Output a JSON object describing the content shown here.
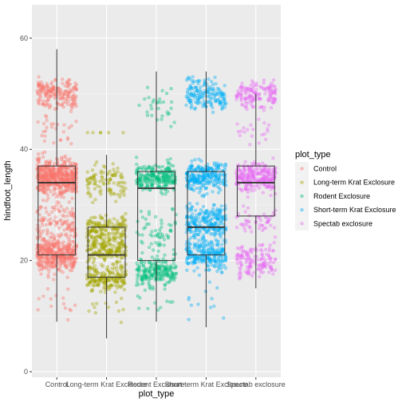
{
  "chart_data": {
    "type": "scatter",
    "subtype": "boxplot-with-jitter",
    "title": "",
    "xlabel": "plot_type",
    "ylabel": "hindfoot_length",
    "ylim": [
      -1,
      66
    ],
    "yticks": [
      0,
      20,
      40,
      60
    ],
    "grid": true,
    "legend": {
      "title": "plot_type",
      "placement": "right"
    },
    "categories": [
      "Control",
      "Long-term Krat Exclosure",
      "Rodent Exclosure",
      "Short-term Krat Exclosure",
      "Spectab exclosure"
    ],
    "colors": [
      "#F8766D",
      "#A3A500",
      "#00BF7D",
      "#00B0F6",
      "#E76BF3"
    ],
    "boxes": [
      {
        "name": "Control",
        "min": 9,
        "q1": 21,
        "median": 34,
        "q3": 37,
        "max": 58
      },
      {
        "name": "Long-term Krat Exclosure",
        "min": 6,
        "q1": 17,
        "median": 21,
        "q3": 26,
        "max": 39
      },
      {
        "name": "Rodent Exclosure",
        "min": 9,
        "q1": 20,
        "median": 33,
        "q3": 36,
        "max": 54
      },
      {
        "name": "Short-term Krat Exclosure",
        "min": 8,
        "q1": 21,
        "median": 26,
        "q3": 36,
        "max": 54
      },
      {
        "name": "Spectab exclosure",
        "min": 15,
        "q1": 28,
        "median": 34,
        "q3": 37,
        "max": 50
      }
    ]
  }
}
